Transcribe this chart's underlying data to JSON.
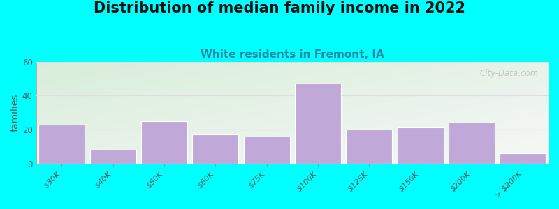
{
  "title": "Distribution of median family income in 2022",
  "subtitle": "White residents in Fremont, IA",
  "ylabel": "families",
  "categories": [
    "$30K",
    "$40K",
    "$50K",
    "$60K",
    "$75K",
    "$100K",
    "$125K",
    "$150K",
    "$200K",
    "> $200K"
  ],
  "values": [
    23,
    8,
    25,
    17,
    16,
    47,
    20,
    21,
    24,
    6
  ],
  "bar_color": "#c0a8d8",
  "ylim": [
    0,
    60
  ],
  "yticks": [
    0,
    20,
    40,
    60
  ],
  "background_outer": "#00ffff",
  "plot_bg_left": "#d8eeda",
  "plot_bg_right": "#f0f0f0",
  "title_fontsize": 15,
  "subtitle_fontsize": 11,
  "subtitle_color": "#2288aa",
  "ylabel_fontsize": 10,
  "watermark_text": "City-Data.com",
  "watermark_color": "#c0c0c0",
  "grid_color": "#dddddd",
  "tick_label_color": "#555555"
}
